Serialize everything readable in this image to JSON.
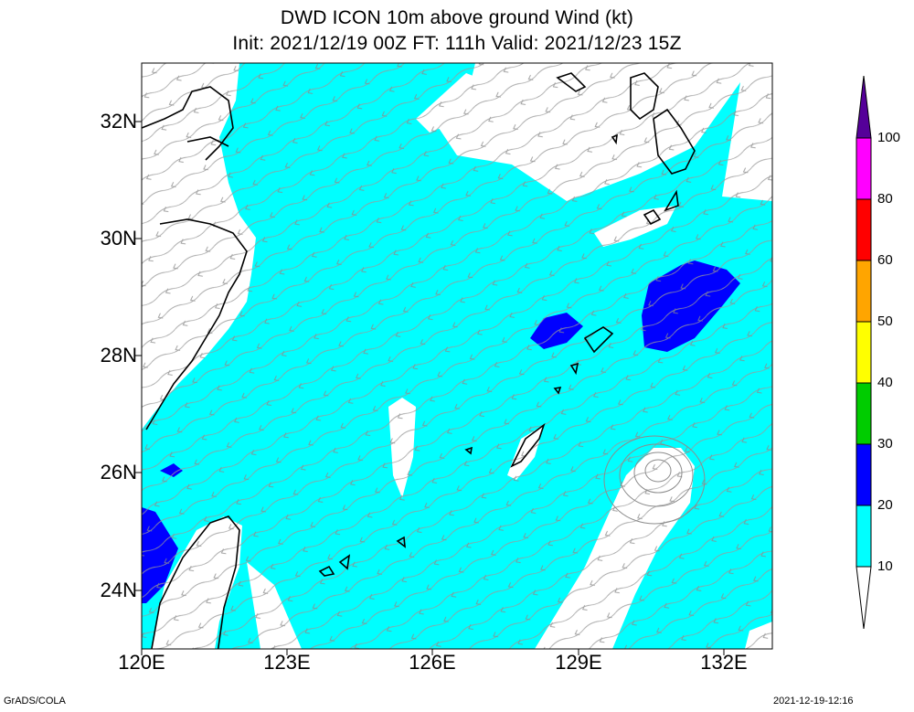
{
  "title": {
    "line1": "DWD ICON 10m above ground Wind (kt)",
    "line2": "Init: 2021/12/19 00Z  FT: 111h  Valid: 2021/12/23 15Z"
  },
  "axes": {
    "lat_labels": [
      "32N",
      "30N",
      "28N",
      "26N",
      "24N"
    ],
    "lon_labels": [
      "120E",
      "123E",
      "126E",
      "129E",
      "132E"
    ],
    "lat_range": [
      23,
      33
    ],
    "lon_range": [
      120,
      133
    ]
  },
  "colorbar": {
    "levels": [
      "10",
      "20",
      "30",
      "40",
      "50",
      "60",
      "80",
      "100"
    ],
    "colors": [
      "#00ffff",
      "#0000ff",
      "#00cc00",
      "#ffff00",
      "#ffa500",
      "#ff0000",
      "#ff00ff",
      "#550099"
    ]
  },
  "colors": {
    "band_10_20": "#00ffff",
    "band_20_30": "#0000ff",
    "below_10": "#ffffff",
    "streamline": "#999999",
    "coastline": "#000000"
  },
  "footer": {
    "left": "GrADS/COLA",
    "right": "2021-12-19-12:16"
  }
}
